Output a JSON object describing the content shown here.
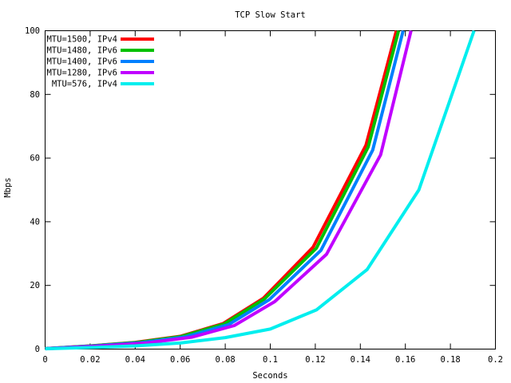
{
  "chart_data": {
    "type": "line",
    "title": "TCP Slow Start",
    "xlabel": "Seconds",
    "ylabel": "Mbps",
    "xlim": [
      0,
      0.2
    ],
    "ylim": [
      0,
      100
    ],
    "x_ticks": [
      "0",
      "0.02",
      "0.04",
      "0.06",
      "0.08",
      "0.1",
      "0.12",
      "0.14",
      "0.16",
      "0.18",
      "0.2"
    ],
    "y_ticks": [
      "0",
      "20",
      "40",
      "60",
      "80",
      "100"
    ],
    "grid": false,
    "legend_position": "top-left-inside",
    "background_color": "#ffffff",
    "axis_color": "#000000",
    "series": [
      {
        "name": "MTU=1500, IPv4",
        "color": "#ff0000",
        "points": [
          [
            0,
            0.15
          ],
          [
            0.02,
            1.0
          ],
          [
            0.04,
            2.1
          ],
          [
            0.06,
            4.0
          ],
          [
            0.079,
            8.0
          ],
          [
            0.097,
            16.0
          ],
          [
            0.119,
            32.0
          ],
          [
            0.1425,
            64.0
          ],
          [
            0.156,
            100.0
          ]
        ]
      },
      {
        "name": "MTU=1480, IPv6",
        "color": "#00c000",
        "points": [
          [
            0,
            0.15
          ],
          [
            0.0205,
            1.0
          ],
          [
            0.0405,
            2.05
          ],
          [
            0.0605,
            3.95
          ],
          [
            0.0795,
            7.9
          ],
          [
            0.0975,
            15.8
          ],
          [
            0.1205,
            31.7
          ],
          [
            0.1435,
            63.5
          ],
          [
            0.157,
            100.0
          ]
        ]
      },
      {
        "name": "MTU=1400, IPv6",
        "color": "#0080ff",
        "points": [
          [
            0,
            0.15
          ],
          [
            0.022,
            1.0
          ],
          [
            0.0425,
            2.0
          ],
          [
            0.0625,
            3.85
          ],
          [
            0.0815,
            7.7
          ],
          [
            0.0995,
            15.5
          ],
          [
            0.1225,
            31.0
          ],
          [
            0.1455,
            62.5
          ],
          [
            0.159,
            100.0
          ]
        ]
      },
      {
        "name": "MTU=1280, IPv6",
        "color": "#c000ff",
        "points": [
          [
            0,
            0.1
          ],
          [
            0.024,
            0.95
          ],
          [
            0.045,
            1.9
          ],
          [
            0.065,
            3.7
          ],
          [
            0.084,
            7.4
          ],
          [
            0.102,
            14.9
          ],
          [
            0.125,
            29.8
          ],
          [
            0.149,
            61.0
          ],
          [
            0.1625,
            100.0
          ]
        ]
      },
      {
        "name": "MTU=576, IPv4",
        "color": "#00eeee",
        "points": [
          [
            0,
            0.1
          ],
          [
            0.02,
            0.5
          ],
          [
            0.04,
            1.0
          ],
          [
            0.06,
            1.9
          ],
          [
            0.08,
            3.6
          ],
          [
            0.1,
            6.3
          ],
          [
            0.1205,
            12.3
          ],
          [
            0.143,
            25.0
          ],
          [
            0.166,
            50.0
          ],
          [
            0.1905,
            100.0
          ]
        ]
      }
    ]
  }
}
